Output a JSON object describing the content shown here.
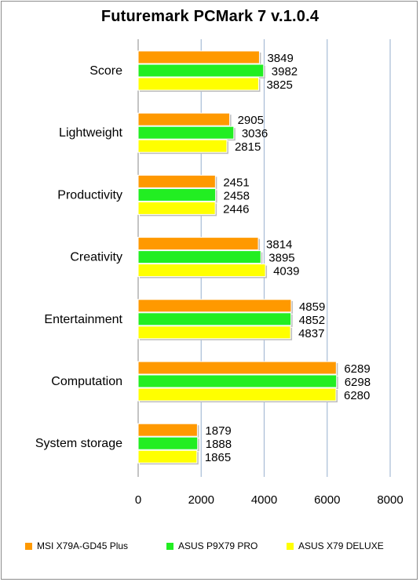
{
  "chart_data": {
    "type": "bar",
    "orientation": "horizontal",
    "title": "Futuremark PCMark 7 v.1.0.4",
    "categories": [
      "Score",
      "Lightweight",
      "Productivity",
      "Creativity",
      "Entertainment",
      "Computation",
      "System storage"
    ],
    "series": [
      {
        "name": "MSI X79A-GD45 Plus",
        "color": "#ff9900",
        "values": [
          3849,
          2905,
          2451,
          3814,
          4859,
          6289,
          1879
        ]
      },
      {
        "name": "ASUS P9X79 PRO",
        "color": "#22ee22",
        "values": [
          3982,
          3036,
          2458,
          3895,
          4852,
          6298,
          1888
        ]
      },
      {
        "name": "ASUS X79 DELUXE",
        "color": "#ffff00",
        "values": [
          3825,
          2815,
          2446,
          4039,
          4837,
          6280,
          1865
        ]
      }
    ],
    "xlim": [
      0,
      8000
    ],
    "xticks": [
      0,
      2000,
      4000,
      6000,
      8000
    ],
    "grid": "vertical",
    "legend_position": "bottom"
  }
}
